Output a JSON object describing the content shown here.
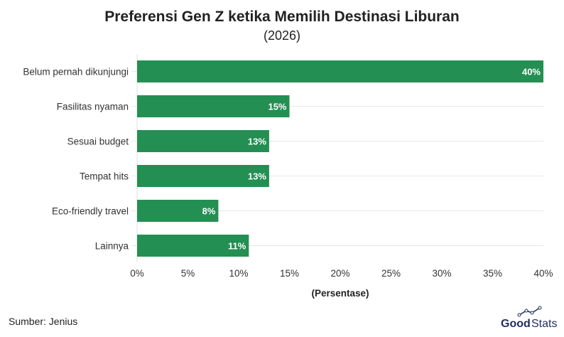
{
  "chart_data": {
    "type": "bar",
    "orientation": "horizontal",
    "title": "Preferensi Gen Z ketika Memilih Destinasi Liburan",
    "subtitle": "(2026)",
    "categories": [
      "Belum pernah dikunjungi",
      "Fasilitas nyaman",
      "Sesuai budget",
      "Tempat hits",
      "Eco-friendly travel",
      "Lainnya"
    ],
    "values": [
      40,
      15,
      13,
      13,
      8,
      11
    ],
    "data_labels": [
      "40%",
      "15%",
      "13%",
      "13%",
      "8%",
      "11%"
    ],
    "xlabel": "(Persentase)",
    "ylabel": "",
    "xlim": [
      0,
      40
    ],
    "xticks": [
      0,
      5,
      10,
      15,
      20,
      25,
      30,
      35,
      40
    ],
    "xtick_labels": [
      "0%",
      "5%",
      "10%",
      "15%",
      "20%",
      "25%",
      "30%",
      "35%",
      "40%"
    ],
    "grid": "horizontal at categories",
    "bar_color": "#238f52"
  },
  "source": "Sumber: Jenius",
  "logo": {
    "text_bold": "Good",
    "text_light": "Stats",
    "color": "#1f2d5c"
  }
}
